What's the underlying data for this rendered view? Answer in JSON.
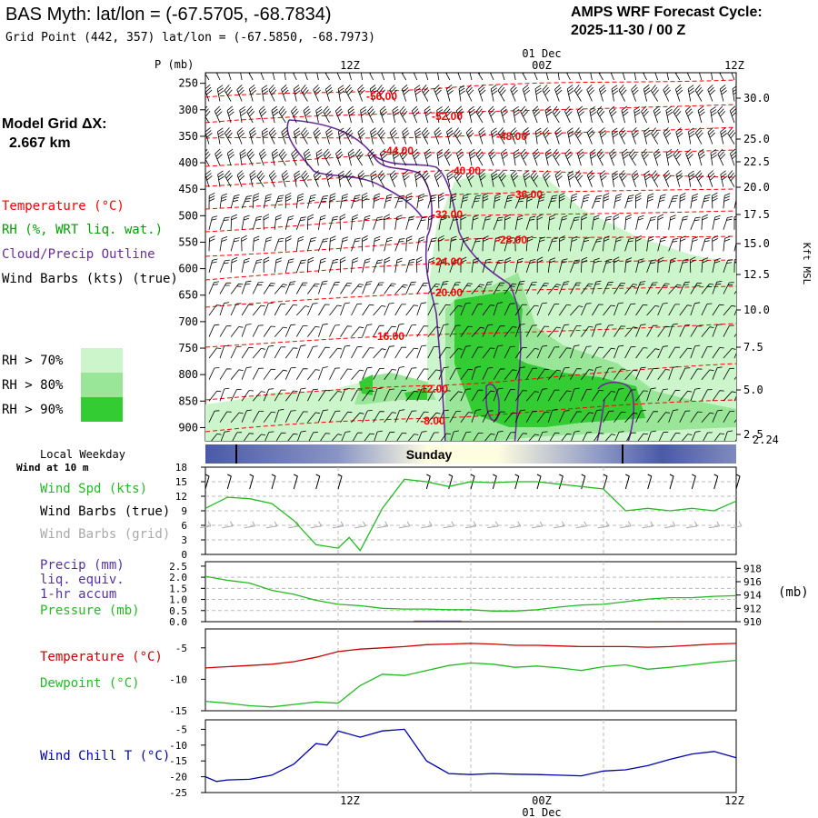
{
  "header": {
    "title": "BAS Myth:  lat/lon = (-67.5705, -68.7834)",
    "subtitle": "Grid Point (442, 357) lat/lon = (-67.5850, -68.7973)",
    "cycle_label": "AMPS WRF Forecast Cycle:",
    "cycle_value": "2025-11-30 / 00  Z"
  },
  "model_grid": {
    "label": "Model Grid ΔX:",
    "value": "2.667 km"
  },
  "legend": {
    "temperature": "Temperature (°C)",
    "rh": "RH (%, WRT liq. wat.)",
    "cloud": "Cloud/Precip Outline",
    "wind_barbs": "Wind Barbs (kts) (true)",
    "rh70": "RH > 70%",
    "rh80": "RH > 80%",
    "rh90": "RH > 90%"
  },
  "colors": {
    "temperature": "#ff0000",
    "rh_label": "#00a000",
    "cloud": "#6a2d9a",
    "rh70": "#ccf5cc",
    "rh80": "#99e699",
    "rh90": "#33cc33",
    "wind_speed": "#22bb22",
    "precip": "#553399",
    "wind_chill": "#0000aa",
    "grid_barbs": "#aaaaaa"
  },
  "time_axis": {
    "top_date": "01 Dec",
    "ticks": [
      "12Z",
      "00Z",
      "12Z"
    ],
    "bottom_date": "01 Dec",
    "day_label": "Sunday",
    "local_weekday": "Local Weekday",
    "wind_height": "Wind at 10 m"
  },
  "chart_data": [
    {
      "name": "cross-section",
      "type": "heatmap",
      "ylabel": "P (mb)",
      "pressure_levels": [
        250,
        300,
        350,
        400,
        450,
        500,
        550,
        600,
        650,
        700,
        750,
        800,
        850,
        900
      ],
      "right_axis_label": "Kft MSL",
      "height_ticks_kft": [
        "30.0",
        "25.0",
        "22.5",
        "20.0",
        "17.5",
        "15.0",
        "12.5",
        "10.0",
        "7.5",
        "5.0",
        "2.5"
      ],
      "surface_height_kft": "2.24",
      "isotherm_labels": [
        "-56.00",
        "-52.00",
        "-48.00",
        "-44.00",
        "-40.00",
        "-36.00",
        "-32.00",
        "-28.00",
        "-24.00",
        "-20.00",
        "-16.00",
        "-12.00",
        "-8.00"
      ]
    },
    {
      "name": "wind",
      "type": "line",
      "ylim": [
        0,
        18
      ],
      "yticks": [
        0,
        3,
        6,
        9,
        12,
        15,
        18
      ],
      "labels": {
        "speed": "Wind Spd (kts)",
        "barbs_true": "Wind Barbs (true)",
        "barbs_grid": "Wind Barbs (grid)"
      },
      "x_hours": [
        0,
        2,
        4,
        6,
        8,
        10,
        12,
        13,
        14,
        16,
        18,
        20,
        22,
        24,
        26,
        28,
        30,
        32,
        34,
        36,
        38,
        40,
        42,
        44,
        46,
        48
      ],
      "speed_kts": [
        9.5,
        11.8,
        11.5,
        10.5,
        7,
        2,
        1.3,
        3.5,
        0.8,
        9.5,
        15.5,
        15,
        14,
        15,
        14.8,
        15,
        15,
        14.5,
        14,
        13.5,
        9,
        9.5,
        9,
        9.5,
        9,
        11
      ]
    },
    {
      "name": "precip-pressure",
      "type": "line",
      "labels": {
        "precip": "Precip (mm)",
        "liq": "liq. equiv.",
        "accum": "1-hr accum",
        "pressure": "Pressure (mb)"
      },
      "unit": "(mb)",
      "precip_ticks": [
        "0.0",
        "0.5",
        "1.0",
        "1.5",
        "2.0",
        "2.5"
      ],
      "pressure_ticks": [
        910,
        912,
        914,
        916,
        918
      ],
      "x_hours": [
        0,
        2,
        4,
        6,
        8,
        10,
        12,
        14,
        16,
        18,
        20,
        22,
        24,
        26,
        28,
        30,
        32,
        34,
        36,
        38,
        40,
        42,
        44,
        46,
        48
      ],
      "pressure_mb": [
        916.8,
        916.2,
        915.8,
        914.7,
        914.1,
        913.2,
        912.6,
        912.4,
        912.0,
        911.9,
        911.9,
        911.8,
        911.8,
        911.6,
        911.6,
        911.8,
        912.2,
        912.5,
        912.6,
        913.0,
        913.4,
        913.6,
        913.6,
        913.8,
        913.9
      ],
      "precip_mm": [
        0,
        0,
        0,
        0,
        0,
        0,
        0,
        0,
        0,
        0,
        0.05,
        0.05,
        0,
        0,
        0,
        0,
        0,
        0,
        0,
        0,
        0,
        0.03,
        0,
        0,
        0
      ]
    },
    {
      "name": "temperature-dewpoint",
      "type": "line",
      "labels": {
        "temperature": "Temperature (°C)",
        "dewpoint": "Dewpoint (°C)"
      },
      "ylim": [
        -15,
        -2
      ],
      "yticks": [
        -15,
        -10,
        -5
      ],
      "x_hours": [
        0,
        2,
        4,
        6,
        8,
        10,
        12,
        14,
        16,
        18,
        20,
        22,
        24,
        26,
        28,
        30,
        32,
        34,
        36,
        38,
        40,
        42,
        44,
        46,
        48
      ],
      "temperature_c": [
        -8.2,
        -8.0,
        -7.8,
        -7.6,
        -7.2,
        -6.5,
        -5.6,
        -5.2,
        -5.0,
        -4.8,
        -4.5,
        -4.4,
        -4.3,
        -4.4,
        -4.6,
        -4.6,
        -4.7,
        -4.8,
        -4.8,
        -4.8,
        -4.9,
        -4.8,
        -4.6,
        -4.4,
        -4.3
      ],
      "dewpoint_c": [
        -13.5,
        -13.8,
        -14.2,
        -14.4,
        -14.0,
        -13.6,
        -13.8,
        -11.0,
        -9.2,
        -9.4,
        -8.6,
        -7.8,
        -7.4,
        -7.6,
        -8.1,
        -7.9,
        -8.2,
        -8.6,
        -8.0,
        -7.7,
        -8.4,
        -8.1,
        -7.7,
        -7.3,
        -7.0
      ]
    },
    {
      "name": "wind-chill",
      "type": "line",
      "label": "Wind Chill T (°C)",
      "ylim": [
        -25,
        -2
      ],
      "yticks": [
        -25,
        -20,
        -15,
        -10,
        -5
      ],
      "x_hours": [
        0,
        1,
        2,
        4,
        6,
        8,
        10,
        11,
        12,
        14,
        16,
        18,
        20,
        22,
        24,
        26,
        28,
        30,
        32,
        34,
        36,
        38,
        40,
        42,
        44,
        46,
        48
      ],
      "wind_chill_c": [
        -20.0,
        -21.5,
        -21.0,
        -20.8,
        -19.5,
        -16.0,
        -9.5,
        -10.0,
        -5.5,
        -7.5,
        -5.5,
        -5.0,
        -15.0,
        -19.0,
        -19.3,
        -19.0,
        -19.2,
        -19.3,
        -19.5,
        -19.7,
        -18.2,
        -17.8,
        -16.5,
        -14.5,
        -12.8,
        -12.0,
        -14.0
      ]
    }
  ]
}
